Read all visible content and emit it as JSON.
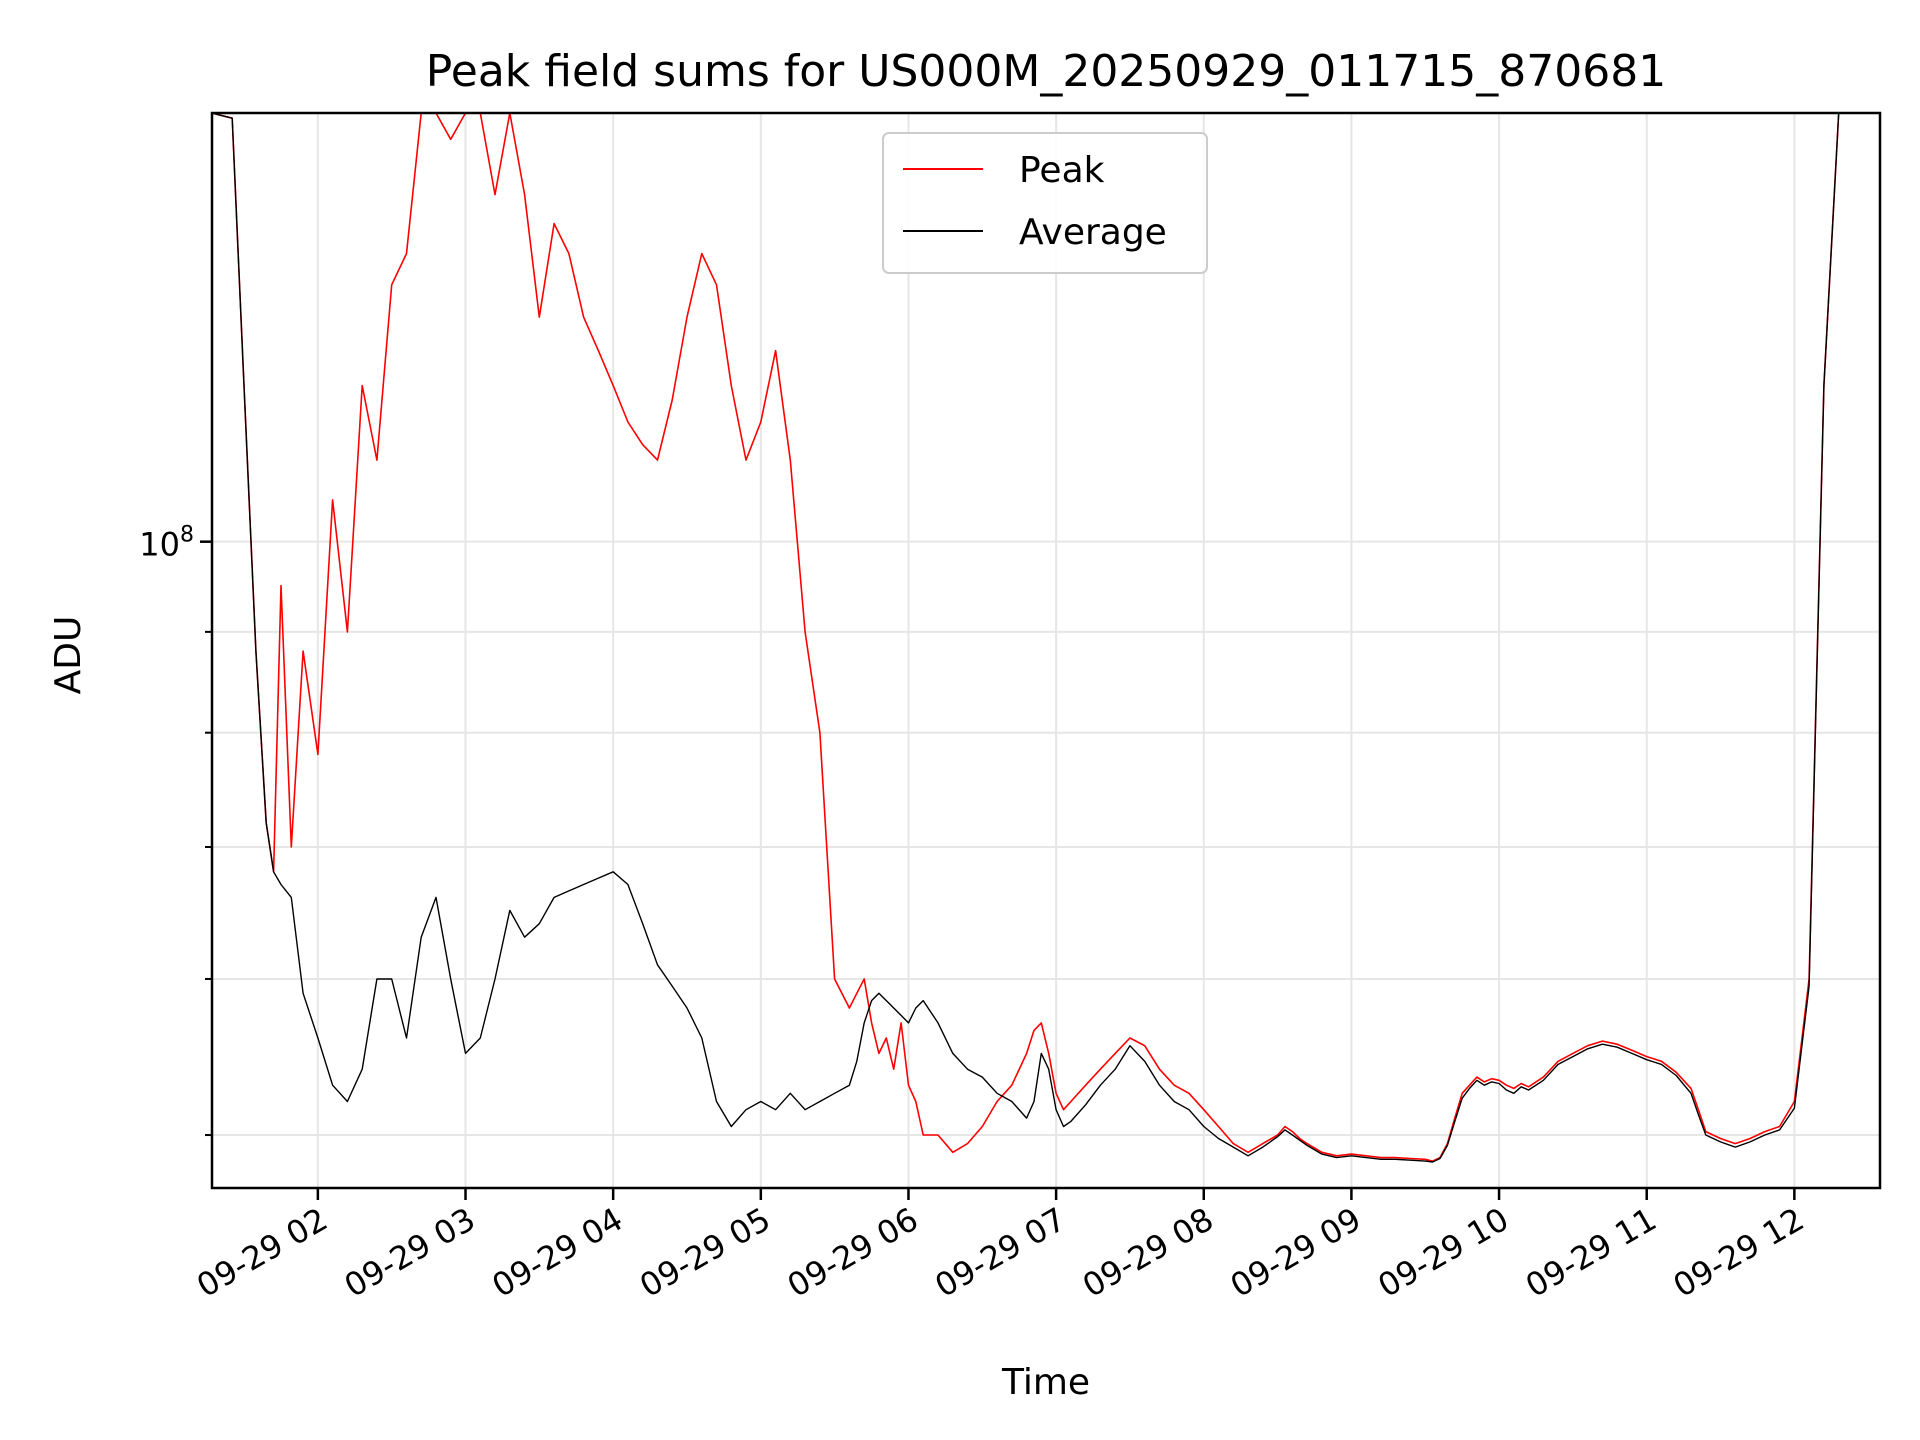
{
  "chart_data": {
    "type": "line",
    "title": "Peak field sums for US000M_20250929_011715_870681",
    "xlabel": "Time",
    "ylabel": "ADU",
    "yscale": "log",
    "grid": true,
    "legend_position": "upper-center",
    "x_ticks": [
      "09-29 02",
      "09-29 03",
      "09-29 04",
      "09-29 05",
      "09-29 06",
      "09-29 07",
      "09-29 08",
      "09-29 09",
      "09-29 10",
      "09-29 11",
      "09-29 12"
    ],
    "x_tick_hours": [
      2,
      3,
      4,
      5,
      6,
      7,
      8,
      9,
      10,
      11,
      12
    ],
    "xlim_hours": [
      1.283,
      12.58
    ],
    "ylim": [
      47000000,
      165000000
    ],
    "y_major_ticks": [
      {
        "value": 100000000,
        "base": "10",
        "exp": "8"
      }
    ],
    "y_minor_ticks": [
      50000000,
      60000000,
      70000000,
      80000000,
      90000000,
      200000000
    ],
    "series": [
      {
        "name": "Peak",
        "color": "#ff0000",
        "x_hours": [
          1.28,
          1.42,
          1.5,
          1.58,
          1.65,
          1.7,
          1.75,
          1.82,
          1.9,
          2.0,
          2.1,
          2.2,
          2.3,
          2.4,
          2.5,
          2.6,
          2.7,
          2.8,
          2.9,
          3.0,
          3.1,
          3.2,
          3.3,
          3.4,
          3.5,
          3.6,
          3.7,
          3.8,
          3.9,
          4.0,
          4.1,
          4.2,
          4.3,
          4.4,
          4.5,
          4.6,
          4.7,
          4.8,
          4.9,
          5.0,
          5.1,
          5.2,
          5.3,
          5.4,
          5.5,
          5.6,
          5.65,
          5.7,
          5.75,
          5.8,
          5.85,
          5.9,
          5.95,
          6.0,
          6.05,
          6.1,
          6.2,
          6.3,
          6.4,
          6.5,
          6.6,
          6.7,
          6.8,
          6.85,
          6.9,
          6.95,
          7.0,
          7.05,
          7.1,
          7.2,
          7.3,
          7.4,
          7.5,
          7.6,
          7.7,
          7.8,
          7.9,
          8.0,
          8.1,
          8.2,
          8.3,
          8.4,
          8.5,
          8.55,
          8.6,
          8.65,
          8.7,
          8.8,
          8.9,
          9.0,
          9.1,
          9.2,
          9.3,
          9.4,
          9.5,
          9.55,
          9.6,
          9.65,
          9.7,
          9.75,
          9.8,
          9.85,
          9.9,
          9.95,
          10.0,
          10.05,
          10.1,
          10.15,
          10.2,
          10.3,
          10.4,
          10.5,
          10.6,
          10.7,
          10.8,
          10.9,
          11.0,
          11.1,
          11.2,
          11.3,
          11.35,
          11.4,
          11.5,
          11.6,
          11.7,
          11.8,
          11.9,
          12.0,
          12.1,
          12.2,
          12.3,
          12.4,
          12.5,
          12.58
        ],
        "values": [
          165000000,
          164000000,
          120000000,
          88000000,
          72000000,
          68000000,
          95000000,
          70000000,
          88000000,
          78000000,
          105000000,
          90000000,
          120000000,
          110000000,
          135000000,
          140000000,
          165000000,
          165000000,
          160000000,
          165000000,
          165000000,
          150000000,
          165000000,
          150000000,
          130000000,
          145000000,
          140000000,
          130000000,
          125000000,
          120000000,
          115000000,
          112000000,
          110000000,
          118000000,
          130000000,
          140000000,
          135000000,
          120000000,
          110000000,
          115000000,
          125000000,
          110000000,
          90000000,
          80000000,
          60000000,
          58000000,
          59000000,
          60000000,
          57000000,
          55000000,
          56000000,
          54000000,
          57000000,
          53000000,
          52000000,
          50000000,
          50000000,
          49000000,
          49500000,
          50500000,
          52000000,
          53000000,
          55000000,
          56500000,
          57000000,
          55000000,
          52500000,
          51500000,
          52000000,
          53000000,
          54000000,
          55000000,
          56000000,
          55500000,
          54000000,
          53000000,
          52500000,
          51500000,
          50500000,
          49500000,
          49000000,
          49500000,
          50000000,
          50500000,
          50200000,
          49800000,
          49500000,
          49000000,
          48800000,
          48900000,
          48800000,
          48700000,
          48700000,
          48650000,
          48600000,
          48500000,
          48700000,
          49500000,
          51000000,
          52500000,
          53000000,
          53500000,
          53200000,
          53400000,
          53300000,
          53000000,
          52800000,
          53100000,
          52900000,
          53500000,
          54500000,
          55000000,
          55500000,
          55800000,
          55600000,
          55200000,
          54800000,
          54500000,
          53800000,
          52800000,
          51500000,
          50200000,
          49800000,
          49500000,
          49800000,
          50200000,
          50500000,
          52000000,
          60000000,
          120000000,
          165000000,
          165000000,
          165000000,
          165000000
        ]
      },
      {
        "name": "Average",
        "color": "#000000",
        "x_hours": [
          1.28,
          1.42,
          1.5,
          1.58,
          1.65,
          1.7,
          1.75,
          1.82,
          1.9,
          2.0,
          2.1,
          2.2,
          2.3,
          2.4,
          2.5,
          2.6,
          2.7,
          2.8,
          2.9,
          3.0,
          3.1,
          3.2,
          3.3,
          3.4,
          3.5,
          3.6,
          3.7,
          3.8,
          3.9,
          4.0,
          4.1,
          4.2,
          4.3,
          4.4,
          4.5,
          4.6,
          4.7,
          4.8,
          4.9,
          5.0,
          5.1,
          5.2,
          5.3,
          5.4,
          5.5,
          5.6,
          5.65,
          5.7,
          5.75,
          5.8,
          5.85,
          5.9,
          5.95,
          6.0,
          6.05,
          6.1,
          6.2,
          6.3,
          6.4,
          6.5,
          6.6,
          6.7,
          6.8,
          6.85,
          6.9,
          6.95,
          7.0,
          7.05,
          7.1,
          7.2,
          7.3,
          7.4,
          7.5,
          7.6,
          7.7,
          7.8,
          7.9,
          8.0,
          8.1,
          8.2,
          8.3,
          8.4,
          8.5,
          8.55,
          8.6,
          8.65,
          8.7,
          8.8,
          8.9,
          9.0,
          9.1,
          9.2,
          9.3,
          9.4,
          9.5,
          9.55,
          9.6,
          9.65,
          9.7,
          9.75,
          9.8,
          9.85,
          9.9,
          9.95,
          10.0,
          10.05,
          10.1,
          10.15,
          10.2,
          10.3,
          10.4,
          10.5,
          10.6,
          10.7,
          10.8,
          10.9,
          11.0,
          11.1,
          11.2,
          11.3,
          11.35,
          11.4,
          11.5,
          11.6,
          11.7,
          11.8,
          11.9,
          12.0,
          12.1,
          12.2,
          12.3,
          12.4,
          12.5,
          12.58
        ],
        "values": [
          165000000,
          164000000,
          120000000,
          88000000,
          72000000,
          68000000,
          67000000,
          66000000,
          59000000,
          56000000,
          53000000,
          52000000,
          54000000,
          60000000,
          60000000,
          56000000,
          63000000,
          66000000,
          60000000,
          55000000,
          56000000,
          60000000,
          65000000,
          63000000,
          64000000,
          66000000,
          66500000,
          67000000,
          67500000,
          68000000,
          67000000,
          64000000,
          61000000,
          59500000,
          58000000,
          56000000,
          52000000,
          50500000,
          51500000,
          52000000,
          51500000,
          52500000,
          51500000,
          52000000,
          52500000,
          53000000,
          54500000,
          57000000,
          58500000,
          59000000,
          58500000,
          58000000,
          57500000,
          57000000,
          58000000,
          58500000,
          57000000,
          55000000,
          54000000,
          53500000,
          52500000,
          52000000,
          51000000,
          52000000,
          55000000,
          54000000,
          51500000,
          50500000,
          50800000,
          51800000,
          53000000,
          54000000,
          55500000,
          54500000,
          53000000,
          52000000,
          51500000,
          50500000,
          49800000,
          49300000,
          48800000,
          49300000,
          49900000,
          50300000,
          50000000,
          49700000,
          49400000,
          48900000,
          48700000,
          48800000,
          48700000,
          48600000,
          48600000,
          48550000,
          48500000,
          48450000,
          48650000,
          49400000,
          50800000,
          52200000,
          52800000,
          53300000,
          53000000,
          53200000,
          53100000,
          52700000,
          52500000,
          52900000,
          52700000,
          53300000,
          54300000,
          54800000,
          55300000,
          55600000,
          55400000,
          55000000,
          54600000,
          54300000,
          53600000,
          52500000,
          51200000,
          50000000,
          49600000,
          49300000,
          49600000,
          50000000,
          50300000,
          51600000,
          59500000,
          120000000,
          165000000,
          165000000,
          165000000,
          165000000
        ]
      }
    ]
  }
}
